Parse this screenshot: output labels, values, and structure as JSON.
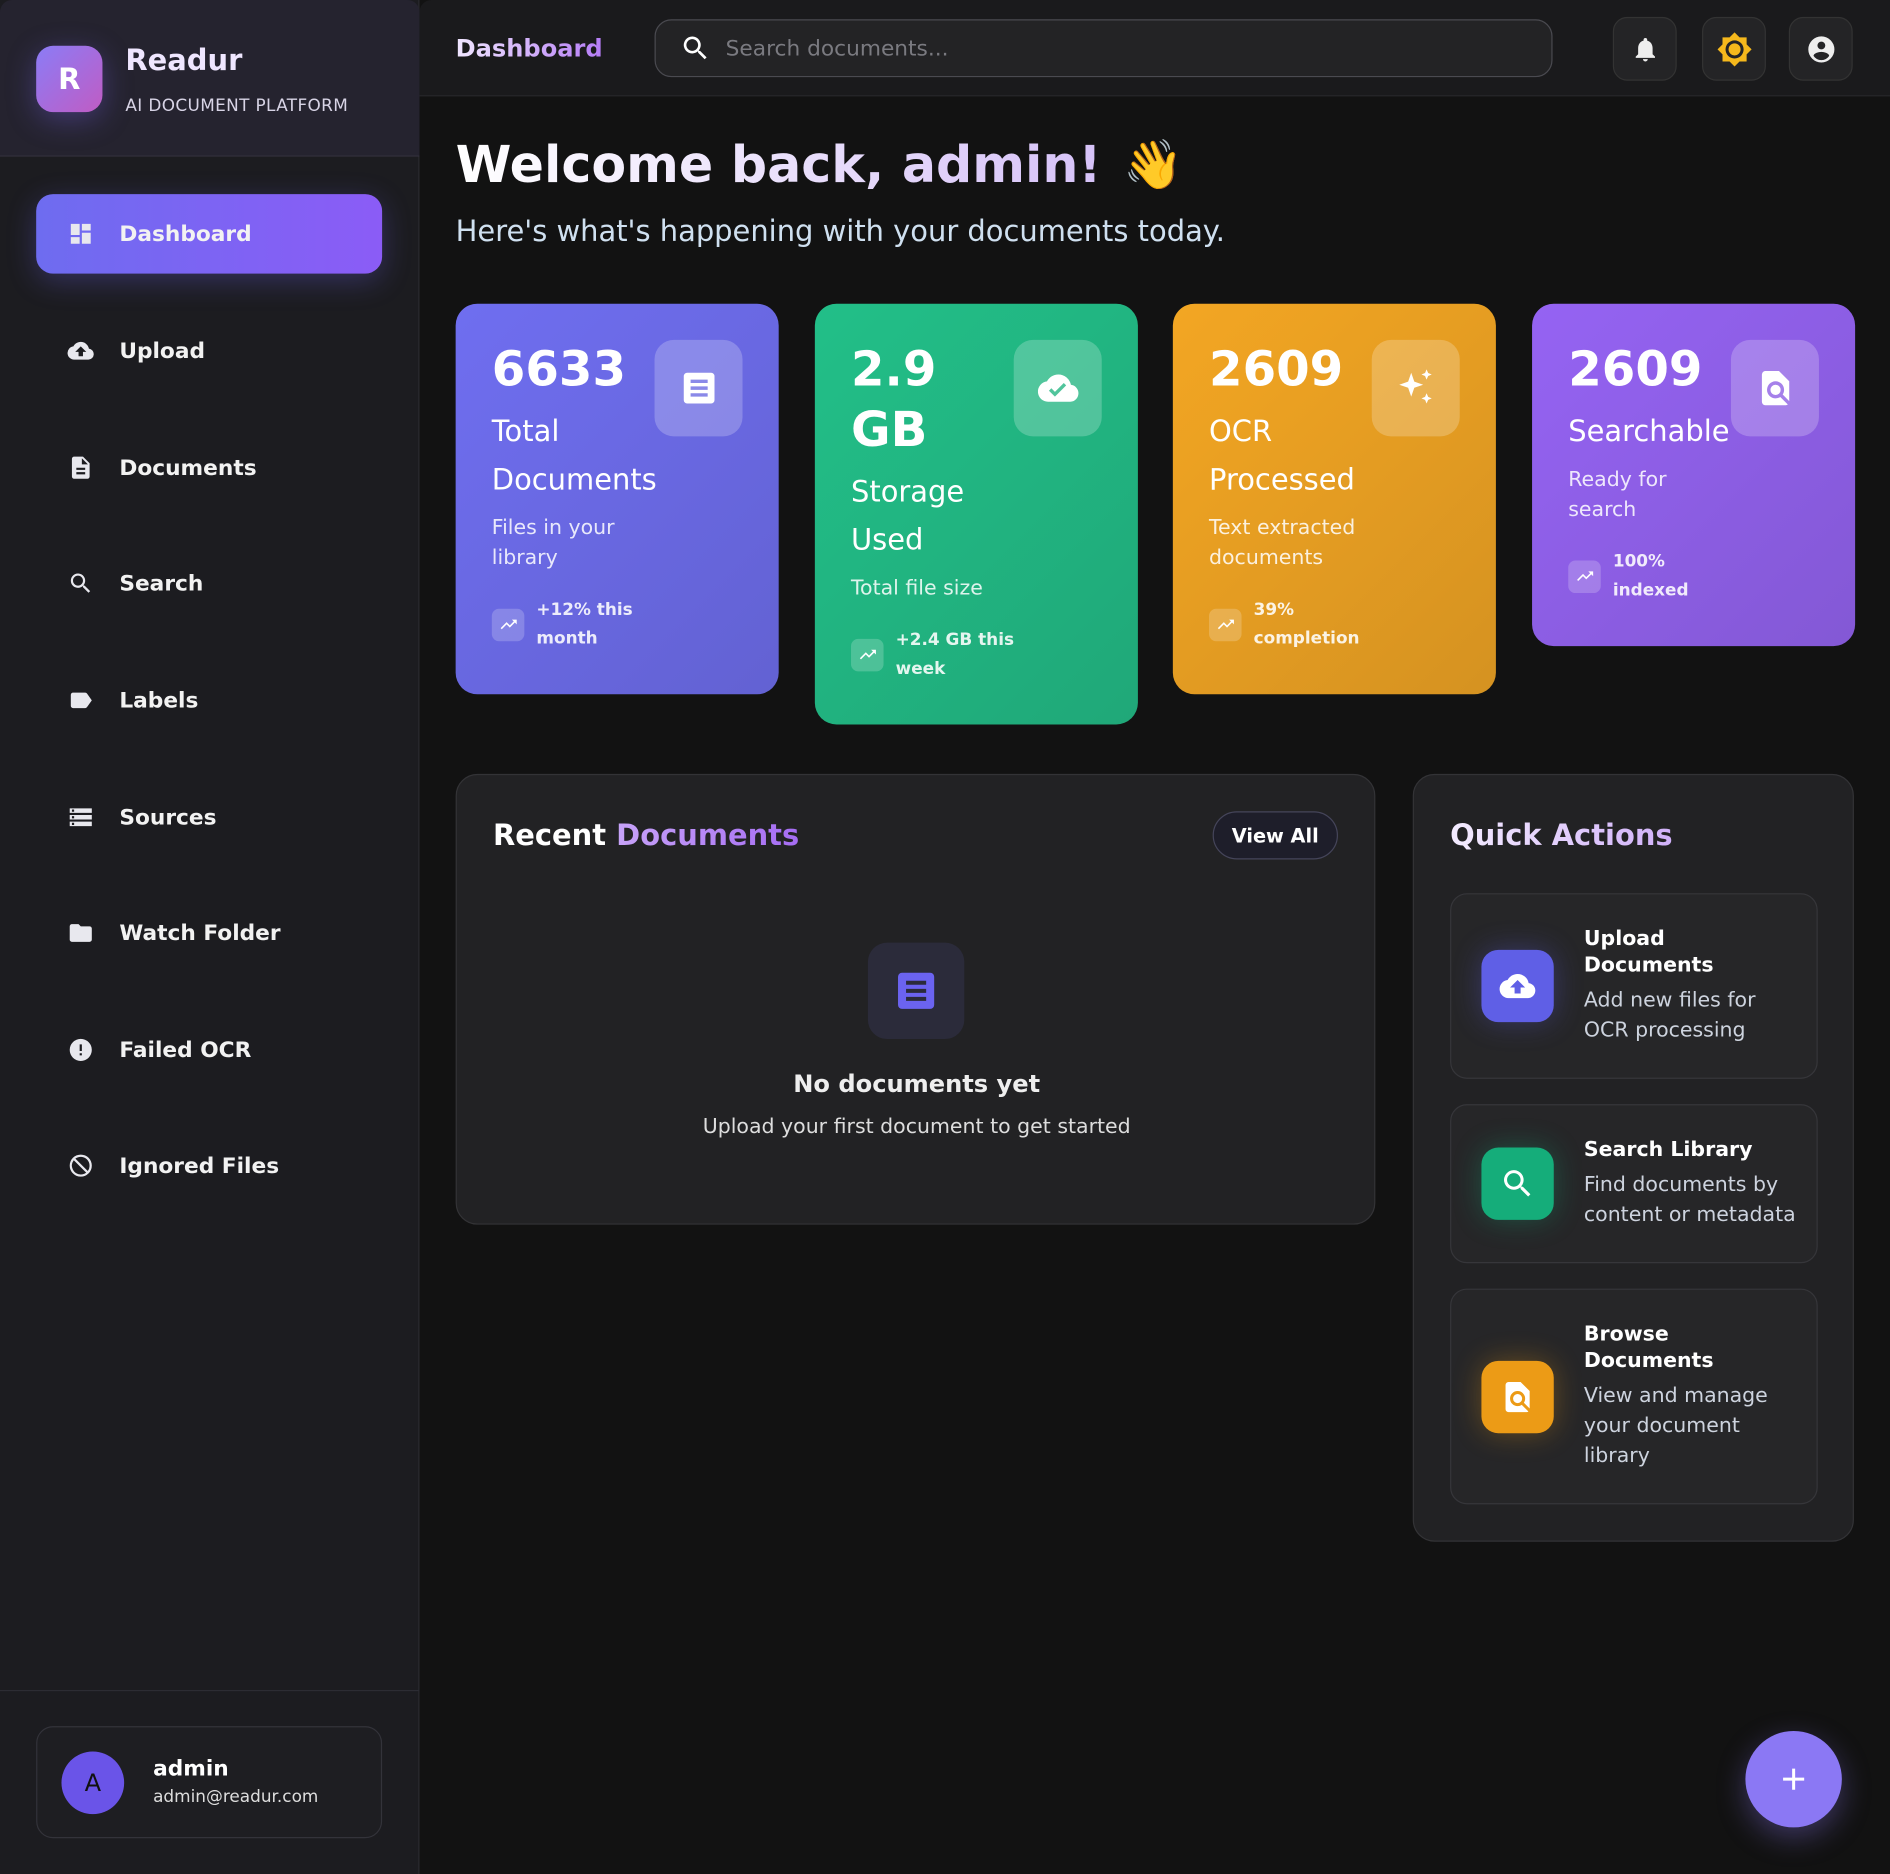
{
  "brand": {
    "logo_letter": "R",
    "name": "Readur",
    "tagline": "AI DOCUMENT PLATFORM"
  },
  "sidebar": {
    "items": [
      {
        "label": "Dashboard",
        "icon": "dashboard-icon",
        "active": true
      },
      {
        "label": "Upload",
        "icon": "cloud-upload-icon"
      },
      {
        "label": "Documents",
        "icon": "document-icon"
      },
      {
        "label": "Search",
        "icon": "search-icon"
      },
      {
        "label": "Labels",
        "icon": "label-icon"
      },
      {
        "label": "Sources",
        "icon": "storage-icon"
      },
      {
        "label": "Watch Folder",
        "icon": "folder-icon"
      },
      {
        "label": "Failed OCR",
        "icon": "error-icon"
      },
      {
        "label": "Ignored Files",
        "icon": "block-icon"
      }
    ]
  },
  "user": {
    "initial": "A",
    "name": "admin",
    "email": "admin@readur.com"
  },
  "topbar": {
    "title": "Dashboard",
    "search_placeholder": "Search documents...",
    "buttons": [
      "bell-icon",
      "theme-sun-icon",
      "account-icon"
    ]
  },
  "welcome": {
    "title": "Welcome back, admin!",
    "emoji": "👋",
    "subtitle": "Here's what's happening with your documents today."
  },
  "stats": [
    {
      "value": "6633",
      "label": "Total Documents",
      "desc": "Files in your library",
      "trend": "+12% this month",
      "icon": "document-icon",
      "color": "#6f6ef0"
    },
    {
      "value": "2.9 GB",
      "label": "Storage Used",
      "desc": "Total file size",
      "trend": "+2.4 GB this week",
      "icon": "cloud-done-icon",
      "color": "#22bf88"
    },
    {
      "value": "2609",
      "label": "OCR Processed",
      "desc": "Text extracted documents",
      "trend": "39% completion",
      "icon": "sparkle-icon",
      "color": "#f3a623"
    },
    {
      "value": "2609",
      "label": "Searchable",
      "desc": "Ready for search",
      "trend": "100% indexed",
      "icon": "find-in-page-icon",
      "color": "#9563f3"
    }
  ],
  "recent": {
    "title_a": "Recent",
    "title_b": "Documents",
    "view_all": "View All",
    "empty_title": "No documents yet",
    "empty_desc": "Upload your first document to get started"
  },
  "quick": {
    "title": "Quick Actions",
    "items": [
      {
        "title": "Upload Documents",
        "desc": "Add new files for OCR processing",
        "icon": "cloud-upload-icon",
        "color": "#5f5fe6"
      },
      {
        "title": "Search Library",
        "desc": "Find documents by content or metadata",
        "icon": "search-icon",
        "color": "#15ad7a"
      },
      {
        "title": "Browse Documents",
        "desc": "View and manage your document library",
        "icon": "find-in-page-icon",
        "color": "#ec9b16"
      }
    ]
  },
  "fab": {
    "icon": "plus-icon"
  }
}
